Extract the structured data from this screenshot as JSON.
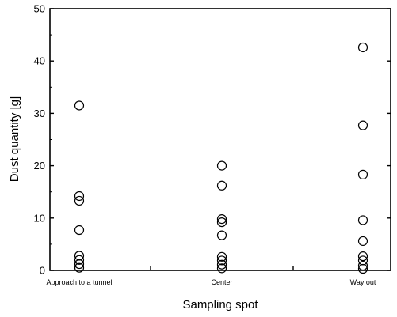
{
  "chart_data": {
    "type": "scatter",
    "title": "",
    "xlabel": "Sampling spot",
    "ylabel": "Dust quantity [g]",
    "categories": [
      "Approach to a tunnel",
      "Center",
      "Way out"
    ],
    "ylim": [
      0,
      50
    ],
    "yticks": [
      0,
      10,
      20,
      30,
      40,
      50
    ],
    "grid": false,
    "series": [
      {
        "marker": "open-circle",
        "points": [
          {
            "category": "Approach to a tunnel",
            "y": 31.5
          },
          {
            "category": "Approach to a tunnel",
            "y": 14.2
          },
          {
            "category": "Approach to a tunnel",
            "y": 13.3
          },
          {
            "category": "Approach to a tunnel",
            "y": 7.7
          },
          {
            "category": "Approach to a tunnel",
            "y": 2.8
          },
          {
            "category": "Approach to a tunnel",
            "y": 2.0
          },
          {
            "category": "Approach to a tunnel",
            "y": 1.2
          },
          {
            "category": "Approach to a tunnel",
            "y": 0.5
          },
          {
            "category": "Center",
            "y": 20.0
          },
          {
            "category": "Center",
            "y": 16.2
          },
          {
            "category": "Center",
            "y": 9.8
          },
          {
            "category": "Center",
            "y": 9.2
          },
          {
            "category": "Center",
            "y": 6.7
          },
          {
            "category": "Center",
            "y": 2.6
          },
          {
            "category": "Center",
            "y": 1.9
          },
          {
            "category": "Center",
            "y": 1.1
          },
          {
            "category": "Center",
            "y": 0.4
          },
          {
            "category": "Way out",
            "y": 42.6
          },
          {
            "category": "Way out",
            "y": 27.7
          },
          {
            "category": "Way out",
            "y": 18.3
          },
          {
            "category": "Way out",
            "y": 9.6
          },
          {
            "category": "Way out",
            "y": 5.6
          },
          {
            "category": "Way out",
            "y": 2.7
          },
          {
            "category": "Way out",
            "y": 1.9
          },
          {
            "category": "Way out",
            "y": 0.9
          },
          {
            "category": "Way out",
            "y": 0.3
          }
        ]
      }
    ]
  }
}
